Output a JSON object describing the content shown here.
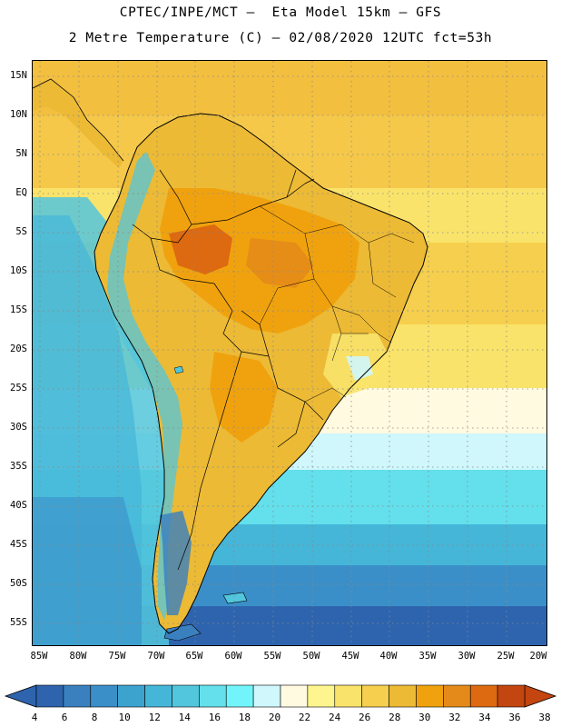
{
  "header": {
    "title_line1": "CPTEC/INPE/MCT –  Eta Model 15km – GFS",
    "title_line2": "2 Metre Temperature (C) – 02/08/2020 12UTC fct=53h"
  },
  "map": {
    "field": "2 Metre Temperature",
    "units": "C",
    "lon_range": [
      -85,
      -20
    ],
    "lat_range": [
      -58,
      17
    ],
    "lat_labels": [
      "15N",
      "10N",
      "5N",
      "EQ",
      "5S",
      "10S",
      "15S",
      "20S",
      "25S",
      "30S",
      "35S",
      "40S",
      "45S",
      "50S",
      "55S"
    ],
    "lon_labels": [
      "85W",
      "80W",
      "75W",
      "70W",
      "65W",
      "60W",
      "55W",
      "50W",
      "45W",
      "40W",
      "35W",
      "30W",
      "25W",
      "20W"
    ]
  },
  "colorbar": {
    "labels": [
      "4",
      "6",
      "8",
      "10",
      "12",
      "14",
      "16",
      "18",
      "20",
      "22",
      "24",
      "26",
      "28",
      "30",
      "32",
      "34",
      "36",
      "38"
    ],
    "colors": [
      "#2e64ae",
      "#3a80bf",
      "#3b8fc8",
      "#3ca3cf",
      "#45b6d8",
      "#52c6dd",
      "#63e0ec",
      "#72f5fa",
      "#cff7fc",
      "#fffae0",
      "#fff58f",
      "#fae36a",
      "#f5cf4d",
      "#ecba35",
      "#f0a20e",
      "#e48a1a",
      "#dd6910",
      "#c3450f"
    ],
    "low_end_color": "#2e64ae",
    "high_end_color": "#c3450f"
  },
  "palette": {
    "ocean_cold": "#2e64ae",
    "ocean_cool": "#3ca3cf",
    "ocean_mild": "#52c6dd",
    "ocean_warm": "#63e0ec",
    "land_hot": "#ecba35",
    "land_hotter": "#f0a20e",
    "land_hottest": "#dd6910",
    "background_warm": "#f5c84a",
    "pale": "#fffae0",
    "cyan_pale": "#cff7fc"
  }
}
